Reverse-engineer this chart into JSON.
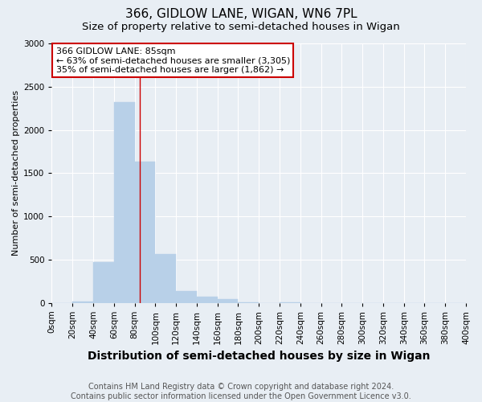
{
  "title": "366, GIDLOW LANE, WIGAN, WN6 7PL",
  "subtitle": "Size of property relative to semi-detached houses in Wigan",
  "xlabel": "Distribution of semi-detached houses by size in Wigan",
  "ylabel": "Number of semi-detached properties",
  "footnote": "Contains HM Land Registry data © Crown copyright and database right 2024.\nContains public sector information licensed under the Open Government Licence v3.0.",
  "bin_edges": [
    0,
    20,
    40,
    60,
    80,
    100,
    120,
    140,
    160,
    180,
    200,
    220,
    240,
    260,
    280,
    300,
    320,
    340,
    360,
    380,
    400
  ],
  "bin_counts": [
    0,
    18,
    470,
    2320,
    1630,
    565,
    140,
    70,
    40,
    10,
    0,
    10,
    0,
    0,
    0,
    0,
    0,
    0,
    0,
    0
  ],
  "bar_color": "#b8d0e8",
  "bar_edgecolor": "#b8d0e8",
  "property_size": 85,
  "vline_color": "#cc0000",
  "annotation_line1": "366 GIDLOW LANE: 85sqm",
  "annotation_line2": "← 63% of semi-detached houses are smaller (3,305)",
  "annotation_line3": "35% of semi-detached houses are larger (1,862) →",
  "annotation_box_color": "#ffffff",
  "annotation_box_edgecolor": "#cc0000",
  "ylim": [
    0,
    3000
  ],
  "xlim": [
    0,
    400
  ],
  "background_color": "#e8eef4",
  "plot_background_color": "#e8eef4",
  "grid_color": "#ffffff",
  "title_fontsize": 11,
  "subtitle_fontsize": 9.5,
  "xlabel_fontsize": 10,
  "ylabel_fontsize": 8,
  "tick_fontsize": 7.5,
  "annotation_fontsize": 8,
  "footnote_fontsize": 7
}
